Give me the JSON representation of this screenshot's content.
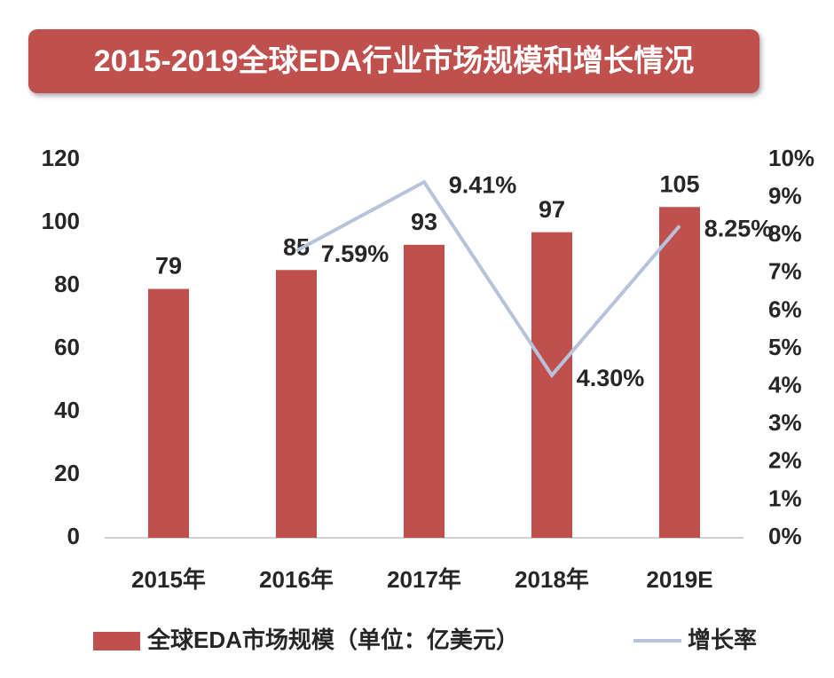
{
  "chart_data": {
    "type": "bar_line",
    "title": "2015-2019全球EDA行业市场规模和增长情况",
    "categories": [
      "2015年",
      "2016年",
      "2017年",
      "2018年",
      "2019E"
    ],
    "series": [
      {
        "name": "全球EDA市场规模（单位：亿美元）",
        "type": "bar",
        "color": "#c0504d",
        "values": [
          79,
          85,
          93,
          97,
          105
        ]
      },
      {
        "name": "增长率",
        "type": "line",
        "axis": "y2",
        "color": "#b7c3da",
        "values": [
          null,
          7.59,
          9.41,
          4.3,
          8.25
        ],
        "value_labels": [
          null,
          "7.59%",
          "9.41%",
          "4.30%",
          "8.25%"
        ]
      }
    ],
    "ylim": [
      0,
      120
    ],
    "yticks": [
      0,
      20,
      40,
      60,
      80,
      100,
      120
    ],
    "y2lim": [
      0,
      10
    ],
    "y2ticks": [
      {
        "value": 0,
        "label": "0%"
      },
      {
        "value": 1,
        "label": "1%"
      },
      {
        "value": 2,
        "label": "2%"
      },
      {
        "value": 3,
        "label": "3%"
      },
      {
        "value": 4,
        "label": "4%"
      },
      {
        "value": 5,
        "label": "5%"
      },
      {
        "value": 6,
        "label": "6%"
      },
      {
        "value": 7,
        "label": "7%"
      },
      {
        "value": 8,
        "label": "8%"
      },
      {
        "value": 9,
        "label": "9%"
      },
      {
        "value": 10,
        "label": "10%"
      }
    ],
    "grid": false,
    "legend": "bottom"
  }
}
